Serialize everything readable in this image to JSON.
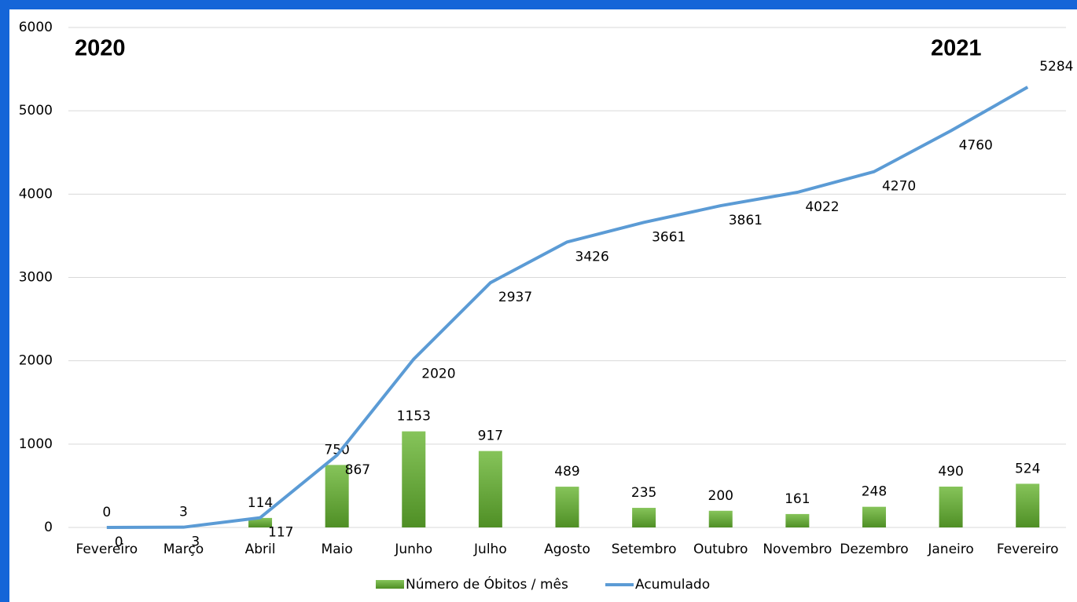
{
  "chart_data": {
    "type": "combo",
    "annotations": [
      "2020",
      "2021"
    ],
    "categories": [
      "Fevereiro",
      "Março",
      "Abril",
      "Maio",
      "Junho",
      "Julho",
      "Agosto",
      "Setembro",
      "Outubro",
      "Novembro",
      "Dezembro",
      "Janeiro",
      "Fevereiro"
    ],
    "series": [
      {
        "name": "Número de Óbitos / mês",
        "type": "bar",
        "color": "#67a83a",
        "values": [
          0,
          3,
          114,
          750,
          1153,
          917,
          489,
          235,
          200,
          161,
          248,
          490,
          524
        ]
      },
      {
        "name": "Acumulado",
        "type": "line",
        "color": "#5b9bd5",
        "values": [
          0,
          3,
          117,
          867,
          2020,
          2937,
          3426,
          3661,
          3861,
          4022,
          4270,
          4760,
          5284
        ]
      }
    ],
    "ylim": [
      0,
      6000
    ],
    "yticks": [
      0,
      1000,
      2000,
      3000,
      4000,
      5000,
      6000
    ],
    "grid": true,
    "legend": "bottom"
  }
}
